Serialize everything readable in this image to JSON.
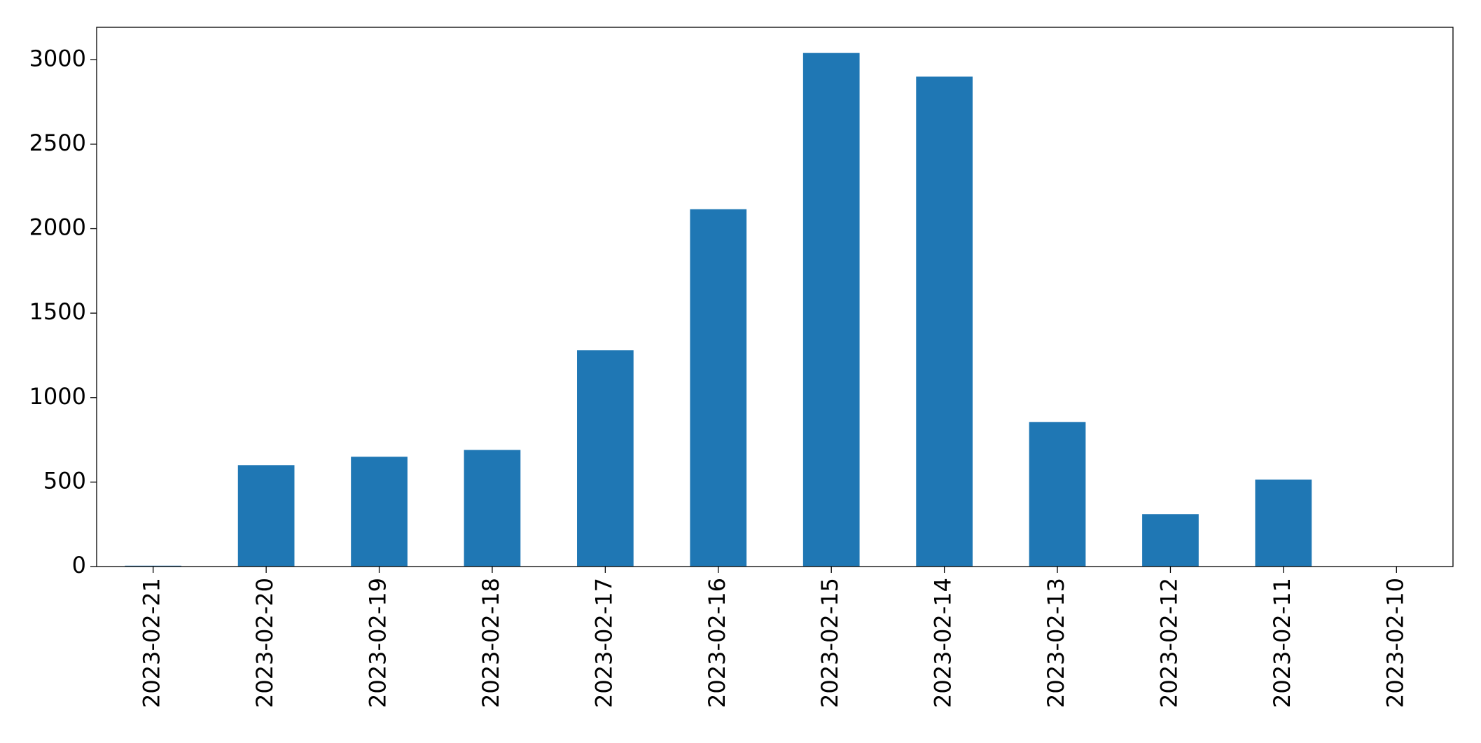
{
  "chart_data": {
    "type": "bar",
    "categories": [
      "2023-02-21",
      "2023-02-20",
      "2023-02-19",
      "2023-02-18",
      "2023-02-17",
      "2023-02-16",
      "2023-02-15",
      "2023-02-14",
      "2023-02-13",
      "2023-02-12",
      "2023-02-11",
      "2023-02-10"
    ],
    "values": [
      5,
      600,
      650,
      690,
      1280,
      2115,
      3040,
      2900,
      855,
      310,
      515,
      0
    ],
    "color": "#1f77b4",
    "ylim": [
      0,
      3192
    ],
    "yticks": [
      0,
      500,
      1000,
      1500,
      2000,
      2500,
      3000
    ],
    "grid": false
  }
}
